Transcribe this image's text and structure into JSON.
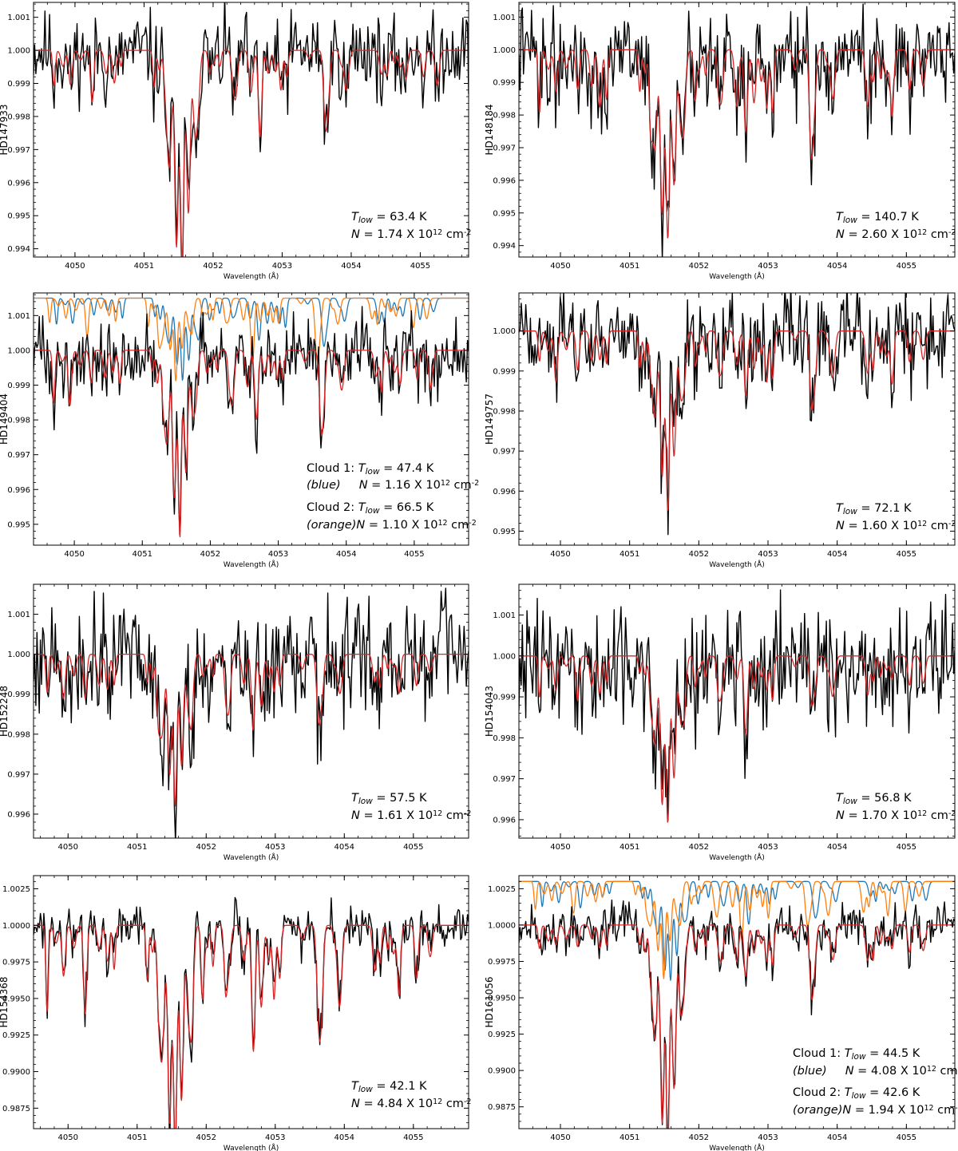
{
  "chart_data": [
    {
      "type": "line",
      "star": "HD147933",
      "xlabel": "Wavelength (Å)",
      "xlim": [
        4049.4,
        4055.7
      ],
      "ylim": [
        0.99375,
        1.00145
      ],
      "xticks": [
        4050,
        4051,
        4052,
        4053,
        4054,
        4055
      ],
      "yticks": [
        0.994,
        0.995,
        0.996,
        0.997,
        0.998,
        0.999,
        1.0,
        1.001
      ],
      "ytick_labels": [
        "0.994",
        "0.995",
        "0.996",
        "0.997",
        "0.998",
        "0.999",
        "1.000",
        "1.001"
      ],
      "series": [
        {
          "color": "#000000",
          "kind": "observed",
          "noise": 0.00095,
          "seed": 11
        },
        {
          "color": "#d62728",
          "kind": "model",
          "baseline": 1.0,
          "scale": 1.0,
          "seed": 101
        }
      ],
      "core_depth": 0.0059,
      "annotations": [
        {
          "parts": [
            [
              "T",
              "i"
            ],
            [
              "low",
              "is"
            ],
            [
              " = 63.4 K",
              ""
            ]
          ]
        },
        {
          "parts": [
            [
              "N",
              "i"
            ],
            [
              " = 1.74 X 10",
              ""
            ],
            [
              "12",
              "sup"
            ],
            [
              " cm",
              ""
            ],
            [
              "-2",
              "sup"
            ]
          ]
        }
      ]
    },
    {
      "type": "line",
      "star": "HD148184",
      "xlabel": "Wavelength (Å)",
      "xlim": [
        4049.4,
        4055.7
      ],
      "ylim": [
        0.99365,
        1.00145
      ],
      "xticks": [
        4050,
        4051,
        4052,
        4053,
        4054,
        4055
      ],
      "yticks": [
        0.994,
        0.995,
        0.996,
        0.997,
        0.998,
        0.999,
        1.0,
        1.001
      ],
      "ytick_labels": [
        "0.994",
        "0.995",
        "0.996",
        "0.997",
        "0.998",
        "0.999",
        "1.000",
        "1.001"
      ],
      "series": [
        {
          "color": "#000000",
          "kind": "observed",
          "noise": 0.0011,
          "seed": 22
        },
        {
          "color": "#d62728",
          "kind": "model",
          "baseline": 1.0,
          "scale": 1.5,
          "seed": 202
        }
      ],
      "core_depth": 0.005,
      "annotations": [
        {
          "parts": [
            [
              "T",
              "i"
            ],
            [
              "low",
              "is"
            ],
            [
              " = 140.7 K",
              ""
            ]
          ]
        },
        {
          "parts": [
            [
              "N",
              "i"
            ],
            [
              " = 2.60 X 10",
              ""
            ],
            [
              "12",
              "sup"
            ],
            [
              " cm",
              ""
            ],
            [
              "-2",
              "sup"
            ]
          ]
        }
      ]
    },
    {
      "type": "line",
      "star": "HD149404",
      "xlabel": "Wavelength (Å)",
      "xlim": [
        4049.4,
        4055.8
      ],
      "ylim": [
        0.9944,
        1.00165
      ],
      "xticks": [
        4050,
        4051,
        4052,
        4053,
        4054,
        4055
      ],
      "yticks": [
        0.995,
        0.996,
        0.997,
        0.998,
        0.999,
        1.0,
        1.001
      ],
      "ytick_labels": [
        "0.995",
        "0.996",
        "0.997",
        "0.998",
        "0.999",
        "1.000",
        "1.001"
      ],
      "series": [
        {
          "color": "#000000",
          "kind": "observed",
          "noise": 0.0008,
          "seed": 33
        },
        {
          "color": "#d62728",
          "kind": "model",
          "baseline": 1.0,
          "scale": 1.0,
          "seed": 303
        },
        {
          "color": "#1f77b4",
          "kind": "cloud",
          "baseline": 1.0015,
          "scale": 0.6,
          "seed": 313
        },
        {
          "color": "#ff7f0e",
          "kind": "cloud",
          "baseline": 1.0015,
          "scale": 0.7,
          "seed": 323
        }
      ],
      "core_depth": 0.0042,
      "annotations": [
        {
          "parts": [
            [
              "Cloud 1: ",
              ""
            ],
            [
              "T",
              "i"
            ],
            [
              "low",
              "is"
            ],
            [
              " = 47.4 K",
              ""
            ]
          ]
        },
        {
          "parts": [
            [
              "(blue)",
              "i"
            ],
            [
              "     ",
              ""
            ],
            [
              "N",
              "i"
            ],
            [
              " = 1.16 X 10",
              ""
            ],
            [
              "12",
              "sup"
            ],
            [
              " cm",
              ""
            ],
            [
              "-2",
              "sup"
            ]
          ]
        },
        {
          "parts": [
            [
              "Cloud 2: ",
              ""
            ],
            [
              "T",
              "i"
            ],
            [
              "low",
              "is"
            ],
            [
              " = 66.5 K",
              ""
            ]
          ]
        },
        {
          "parts": [
            [
              "(orange)",
              "i"
            ],
            [
              "N",
              "i"
            ],
            [
              " = 1.10 X 10",
              ""
            ],
            [
              "12",
              "sup"
            ],
            [
              " cm",
              ""
            ],
            [
              "-2",
              "sup"
            ]
          ]
        }
      ]
    },
    {
      "type": "line",
      "star": "HD149757",
      "xlabel": "Wavelength (Å)",
      "xlim": [
        4049.4,
        4055.7
      ],
      "ylim": [
        0.99465,
        1.00095
      ],
      "xticks": [
        4050,
        4051,
        4052,
        4053,
        4054,
        4055
      ],
      "yticks": [
        0.995,
        0.996,
        0.997,
        0.998,
        0.999,
        1.0
      ],
      "ytick_labels": [
        "0.995",
        "0.996",
        "0.997",
        "0.998",
        "0.999",
        "1.000"
      ],
      "series": [
        {
          "color": "#000000",
          "kind": "observed",
          "noise": 0.00085,
          "seed": 44
        },
        {
          "color": "#d62728",
          "kind": "model",
          "baseline": 1.0,
          "scale": 0.9,
          "seed": 404
        }
      ],
      "core_depth": 0.0036,
      "annotations": [
        {
          "parts": [
            [
              "T",
              "i"
            ],
            [
              "low",
              "is"
            ],
            [
              " = 72.1 K",
              ""
            ]
          ]
        },
        {
          "parts": [
            [
              "N",
              "i"
            ],
            [
              " = 1.60 X 10",
              ""
            ],
            [
              "12",
              "sup"
            ],
            [
              " cm",
              ""
            ],
            [
              "-2",
              "sup"
            ]
          ]
        }
      ]
    },
    {
      "type": "line",
      "star": "HD152248",
      "xlabel": "Wavelength (Å)",
      "xlim": [
        4049.5,
        4055.8
      ],
      "ylim": [
        0.9954,
        1.00175
      ],
      "xticks": [
        4050,
        4051,
        4052,
        4053,
        4054,
        4055
      ],
      "yticks": [
        0.996,
        0.997,
        0.998,
        0.999,
        1.0,
        1.001
      ],
      "ytick_labels": [
        "0.996",
        "0.997",
        "0.998",
        "0.999",
        "1.000",
        "1.001"
      ],
      "series": [
        {
          "color": "#000000",
          "kind": "observed",
          "noise": 0.0011,
          "seed": 55
        },
        {
          "color": "#d62728",
          "kind": "model",
          "baseline": 1.0,
          "scale": 0.9,
          "seed": 505
        }
      ],
      "core_depth": 0.003,
      "annotations": [
        {
          "parts": [
            [
              "T",
              "i"
            ],
            [
              "low",
              "is"
            ],
            [
              " = 57.5 K",
              ""
            ]
          ]
        },
        {
          "parts": [
            [
              "N",
              "i"
            ],
            [
              " = 1.61 X 10",
              ""
            ],
            [
              "12",
              "sup"
            ],
            [
              " cm",
              ""
            ],
            [
              "-2",
              "sup"
            ]
          ]
        }
      ]
    },
    {
      "type": "line",
      "star": "HD154043",
      "xlabel": "Wavelength (Å)",
      "xlim": [
        4049.4,
        4055.7
      ],
      "ylim": [
        0.99555,
        1.00175
      ],
      "xticks": [
        4050,
        4051,
        4052,
        4053,
        4054,
        4055
      ],
      "yticks": [
        0.996,
        0.997,
        0.998,
        0.999,
        1.0,
        1.001
      ],
      "ytick_labels": [
        "0.996",
        "0.997",
        "0.998",
        "0.999",
        "1.000",
        "1.001"
      ],
      "series": [
        {
          "color": "#000000",
          "kind": "observed",
          "noise": 0.0011,
          "seed": 66
        },
        {
          "color": "#d62728",
          "kind": "model",
          "baseline": 1.0,
          "scale": 0.8,
          "seed": 606
        }
      ],
      "core_depth": 0.0036,
      "annotations": [
        {
          "parts": [
            [
              "T",
              "i"
            ],
            [
              "low",
              "is"
            ],
            [
              " = 56.8 K",
              ""
            ]
          ]
        },
        {
          "parts": [
            [
              "N",
              "i"
            ],
            [
              " = 1.70 X 10",
              ""
            ],
            [
              "12",
              "sup"
            ],
            [
              " cm",
              ""
            ],
            [
              "-2",
              "sup"
            ]
          ]
        }
      ]
    },
    {
      "type": "line",
      "star": "HD154368",
      "xlabel": "Wavelength (Å)",
      "xlim": [
        4049.5,
        4055.8
      ],
      "ylim": [
        0.9861,
        1.0034
      ],
      "xticks": [
        4050,
        4051,
        4052,
        4053,
        4054,
        4055
      ],
      "yticks": [
        0.9875,
        0.99,
        0.9925,
        0.995,
        0.9975,
        1.0,
        1.0025
      ],
      "ytick_labels": [
        "0.9875",
        "0.9900",
        "0.9925",
        "0.9950",
        "0.9975",
        "1.0000",
        "1.0025"
      ],
      "series": [
        {
          "color": "#000000",
          "kind": "observed",
          "noise": 0.0012,
          "seed": 77
        },
        {
          "color": "#d62728",
          "kind": "model",
          "baseline": 1.0,
          "scale": 4.0,
          "seed": 707
        }
      ],
      "core_depth": 0.0135,
      "annotations": [
        {
          "parts": [
            [
              "T",
              "i"
            ],
            [
              "low",
              "is"
            ],
            [
              " = 42.1 K",
              ""
            ]
          ]
        },
        {
          "parts": [
            [
              "N",
              "i"
            ],
            [
              " = 4.84 X 10",
              ""
            ],
            [
              "12",
              "sup"
            ],
            [
              " cm",
              ""
            ],
            [
              "-2",
              "sup"
            ]
          ]
        }
      ]
    },
    {
      "type": "line",
      "star": "HD161056",
      "xlabel": "Wavelength (Å)",
      "xlim": [
        4049.4,
        4055.7
      ],
      "ylim": [
        0.986,
        1.0034
      ],
      "xticks": [
        4050,
        4051,
        4052,
        4053,
        4054,
        4055
      ],
      "yticks": [
        0.9875,
        0.99,
        0.9925,
        0.995,
        0.9975,
        1.0,
        1.0025
      ],
      "ytick_labels": [
        "0.9875",
        "0.9900",
        "0.9925",
        "0.9950",
        "0.9975",
        "1.0000",
        "1.0025"
      ],
      "series": [
        {
          "color": "#000000",
          "kind": "observed",
          "noise": 0.0011,
          "seed": 88
        },
        {
          "color": "#d62728",
          "kind": "model",
          "baseline": 1.0,
          "scale": 2.0,
          "seed": 808
        },
        {
          "color": "#1f77b4",
          "kind": "cloud",
          "baseline": 1.003,
          "scale": 1.2,
          "seed": 818
        },
        {
          "color": "#ff7f0e",
          "kind": "cloud",
          "baseline": 1.003,
          "scale": 1.6,
          "seed": 828
        }
      ],
      "core_depth": 0.0135,
      "annotations": [
        {
          "parts": [
            [
              "Cloud 1: ",
              ""
            ],
            [
              "T",
              "i"
            ],
            [
              "low",
              "is"
            ],
            [
              " = 44.5 K",
              ""
            ]
          ]
        },
        {
          "parts": [
            [
              "(blue)",
              "i"
            ],
            [
              "     ",
              ""
            ],
            [
              "N",
              "i"
            ],
            [
              " = 4.08 X 10",
              ""
            ],
            [
              "12",
              "sup"
            ],
            [
              " cm",
              ""
            ],
            [
              "-2",
              "sup"
            ]
          ]
        },
        {
          "parts": [
            [
              "Cloud 2: ",
              ""
            ],
            [
              "T",
              "i"
            ],
            [
              "low",
              "is"
            ],
            [
              " = 42.6 K",
              ""
            ]
          ]
        },
        {
          "parts": [
            [
              "(orange)",
              "i"
            ],
            [
              "N",
              "i"
            ],
            [
              " = 1.94 X 10",
              ""
            ],
            [
              "12",
              "sup"
            ],
            [
              " cm",
              ""
            ],
            [
              "-2",
              "sup"
            ]
          ]
        }
      ]
    }
  ]
}
